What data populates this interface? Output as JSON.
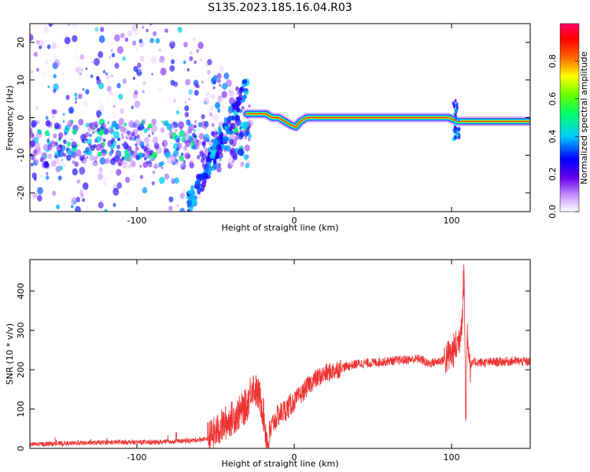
{
  "title": "S135.2023.185.16.04.R03",
  "chart_data": [
    {
      "type": "heatmap",
      "xlabel": "Height of straight line (km)",
      "ylabel": "Frequency (Hz)",
      "xlim": [
        -168,
        150
      ],
      "ylim": [
        -25,
        25
      ],
      "xticks": [
        -100,
        0,
        100
      ],
      "yticks": [
        -20,
        -10,
        0,
        10,
        20
      ],
      "colorbar": {
        "label": "Normalized spectral amplitude",
        "range": [
          0.0,
          1.0
        ],
        "ticks": [
          "0.0",
          "0.2",
          "0.4",
          "0.6",
          "0.8"
        ],
        "colors": [
          "#ffffff",
          "#6600ee",
          "#0000ff",
          "#00ccff",
          "#00ff66",
          "#66ff00",
          "#ffff00",
          "#ff6600",
          "#ff0000",
          "#ff0066"
        ]
      },
      "ridge": {
        "description_points": [
          [
            -30,
            1
          ],
          [
            -24,
            1
          ],
          [
            -18,
            1
          ],
          [
            -14,
            0
          ],
          [
            -10,
            0
          ],
          [
            -6,
            -1
          ],
          [
            -2,
            -2
          ],
          [
            1,
            -2.5
          ],
          [
            4,
            -1
          ],
          [
            8,
            0
          ],
          [
            20,
            0
          ],
          [
            40,
            0
          ],
          [
            60,
            0
          ],
          [
            75,
            0
          ],
          [
            80,
            0
          ],
          [
            90,
            0
          ],
          [
            98,
            0
          ],
          [
            104,
            -1
          ],
          [
            110,
            -1
          ],
          [
            130,
            -1
          ],
          [
            150,
            -1
          ]
        ]
      }
    },
    {
      "type": "line",
      "xlabel": "Height of straight line (km)",
      "ylabel": "SNR (10 * v/v)",
      "xlim": [
        -168,
        150
      ],
      "ylim": [
        0,
        480
      ],
      "xticks": [
        -100,
        0,
        100
      ],
      "yticks": [
        0,
        100,
        200,
        300,
        400
      ],
      "color": "#ee3333",
      "series": [
        {
          "x": [
            -168,
            -150,
            -130,
            -110,
            -90,
            -75,
            -65,
            -55,
            -50,
            -45,
            -40,
            -35,
            -30,
            -27,
            -25,
            -22,
            -20,
            -17,
            -14,
            -10,
            -5,
            0,
            5,
            10,
            15,
            20,
            30,
            40,
            50,
            60,
            70,
            80,
            85,
            90,
            95,
            100,
            103,
            105,
            107,
            108,
            109,
            110,
            112,
            115,
            120,
            130,
            140,
            150
          ],
          "y": [
            10,
            12,
            14,
            16,
            15,
            18,
            20,
            25,
            40,
            60,
            75,
            90,
            110,
            160,
            150,
            130,
            100,
            10,
            60,
            85,
            100,
            120,
            140,
            165,
            180,
            190,
            205,
            215,
            218,
            222,
            225,
            228,
            215,
            220,
            225,
            240,
            260,
            280,
            350,
            470,
            60,
            300,
            210,
            220,
            218,
            220,
            222,
            220
          ]
        }
      ]
    }
  ]
}
